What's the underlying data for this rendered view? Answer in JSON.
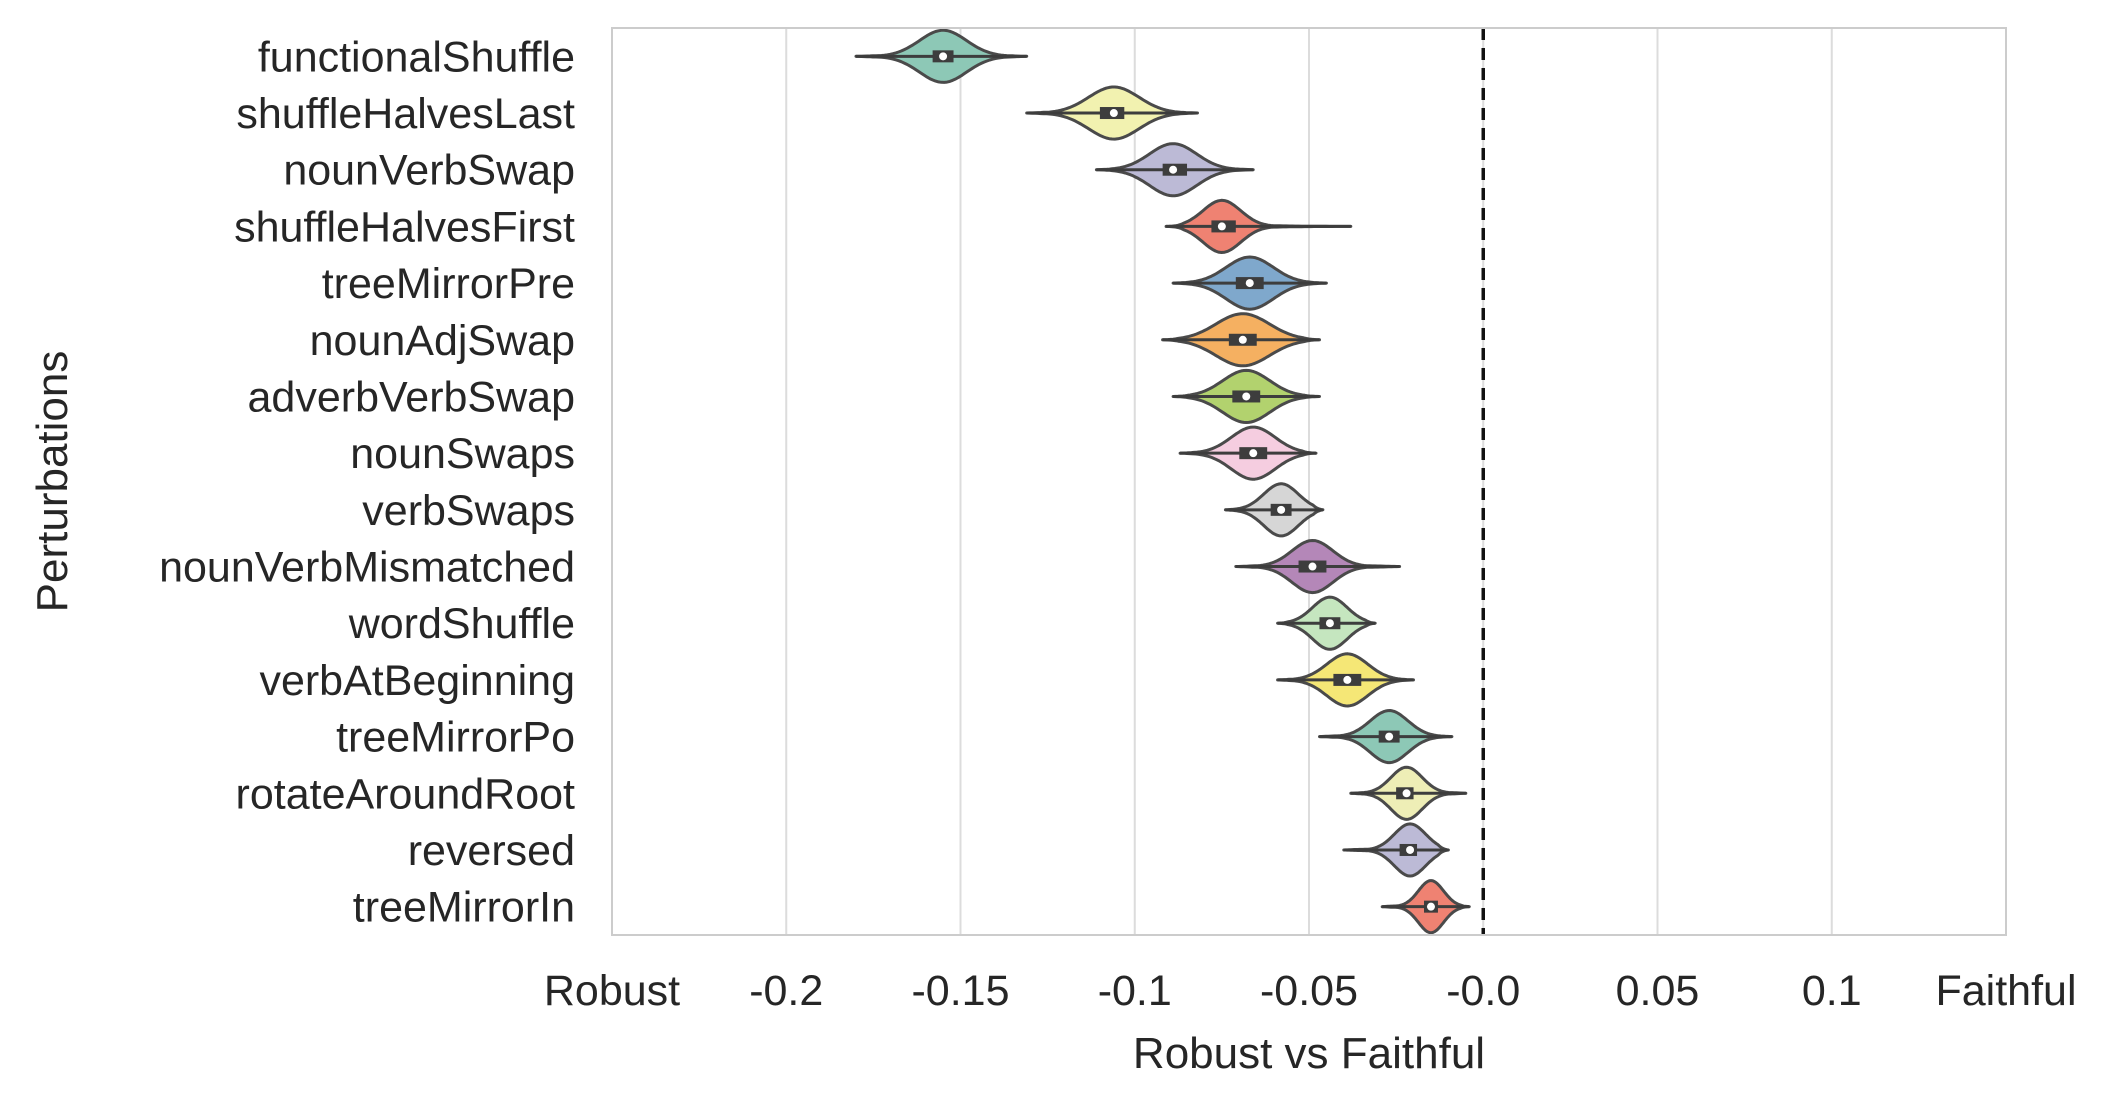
{
  "chart_data": {
    "type": "violin",
    "orientation": "horizontal",
    "title": "",
    "xlabel": "Robust vs Faithful",
    "ylabel": "Perturbations",
    "xlim": [
      -0.25,
      0.15
    ],
    "x_ticks": [
      {
        "value": -0.25,
        "label": "Robust"
      },
      {
        "value": -0.2,
        "label": "-0.2"
      },
      {
        "value": -0.15,
        "label": "-0.15"
      },
      {
        "value": -0.1,
        "label": "-0.1"
      },
      {
        "value": -0.05,
        "label": "-0.05"
      },
      {
        "value": 0.0,
        "label": "-0.0"
      },
      {
        "value": 0.05,
        "label": "0.05"
      },
      {
        "value": 0.1,
        "label": "0.1"
      },
      {
        "value": 0.15,
        "label": "Faithful"
      }
    ],
    "grid": "vertical",
    "reference_line": {
      "value": 0.0,
      "style": "dashed"
    },
    "categories": [
      {
        "name": "functionalShuffle",
        "median": -0.155,
        "q1": -0.158,
        "q3": -0.152,
        "min": -0.18,
        "max": -0.131,
        "spread": 0.015,
        "color": "#8dc8b6"
      },
      {
        "name": "shuffleHalvesLast",
        "median": -0.106,
        "q1": -0.11,
        "q3": -0.103,
        "min": -0.131,
        "max": -0.082,
        "spread": 0.016,
        "color": "#f2f2b0"
      },
      {
        "name": "nounVerbSwap",
        "median": -0.089,
        "q1": -0.092,
        "q3": -0.085,
        "min": -0.111,
        "max": -0.066,
        "spread": 0.015,
        "color": "#bcbad6"
      },
      {
        "name": "shuffleHalvesFirst",
        "median": -0.075,
        "q1": -0.078,
        "q3": -0.071,
        "min": -0.091,
        "max": -0.038,
        "spread": 0.012,
        "color": "#ef8272"
      },
      {
        "name": "treeMirrorPre",
        "median": -0.067,
        "q1": -0.071,
        "q3": -0.063,
        "min": -0.089,
        "max": -0.045,
        "spread": 0.015,
        "color": "#7fa8cc"
      },
      {
        "name": "nounAdjSwap",
        "median": -0.069,
        "q1": -0.073,
        "q3": -0.065,
        "min": -0.092,
        "max": -0.047,
        "spread": 0.017,
        "color": "#f5b061"
      },
      {
        "name": "adverbVerbSwap",
        "median": -0.068,
        "q1": -0.072,
        "q3": -0.064,
        "min": -0.089,
        "max": -0.047,
        "spread": 0.015,
        "color": "#b2d26e"
      },
      {
        "name": "nounSwaps",
        "median": -0.066,
        "q1": -0.07,
        "q3": -0.062,
        "min": -0.087,
        "max": -0.048,
        "spread": 0.014,
        "color": "#f5cde0"
      },
      {
        "name": "verbSwaps",
        "median": -0.058,
        "q1": -0.061,
        "q3": -0.055,
        "min": -0.074,
        "max": -0.046,
        "spread": 0.011,
        "color": "#d6d6d6"
      },
      {
        "name": "nounVerbMismatched",
        "median": -0.049,
        "q1": -0.053,
        "q3": -0.045,
        "min": -0.071,
        "max": -0.024,
        "spread": 0.013,
        "color": "#b487b8"
      },
      {
        "name": "wordShuffle",
        "median": -0.044,
        "q1": -0.047,
        "q3": -0.041,
        "min": -0.059,
        "max": -0.031,
        "spread": 0.011,
        "color": "#c5e6bf"
      },
      {
        "name": "verbAtBeginning",
        "median": -0.039,
        "q1": -0.043,
        "q3": -0.035,
        "min": -0.059,
        "max": -0.02,
        "spread": 0.013,
        "color": "#f5e776"
      },
      {
        "name": "treeMirrorPo",
        "median": -0.027,
        "q1": -0.03,
        "q3": -0.024,
        "min": -0.047,
        "max": -0.009,
        "spread": 0.012,
        "color": "#8dc8b6"
      },
      {
        "name": "rotateAroundRoot",
        "median": -0.022,
        "q1": -0.025,
        "q3": -0.02,
        "min": -0.038,
        "max": -0.005,
        "spread": 0.01,
        "color": "#eeeeb6"
      },
      {
        "name": "reversed",
        "median": -0.021,
        "q1": -0.024,
        "q3": -0.019,
        "min": -0.04,
        "max": -0.01,
        "spread": 0.01,
        "color": "#bcbad6"
      },
      {
        "name": "treeMirrorIn",
        "median": -0.015,
        "q1": -0.017,
        "q3": -0.013,
        "min": -0.029,
        "max": -0.004,
        "spread": 0.008,
        "color": "#ef8272"
      }
    ]
  }
}
